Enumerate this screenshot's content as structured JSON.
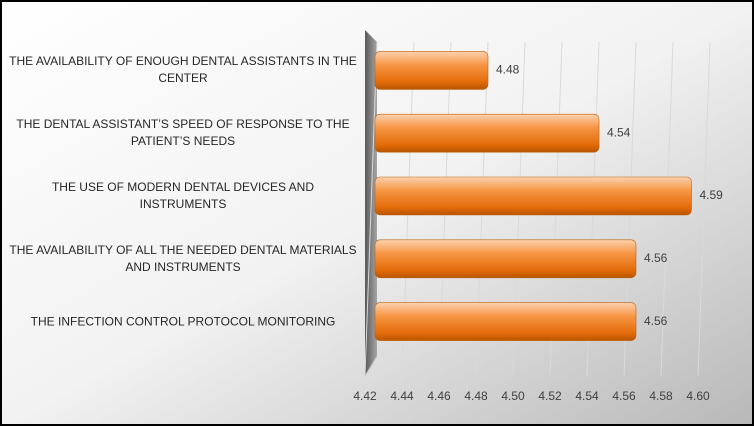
{
  "chart_data": {
    "type": "bar",
    "orientation": "horizontal",
    "categories": [
      "THE AVAILABILITY OF ENOUGH DENTAL ASSISTANTS IN THE CENTER",
      "THE DENTAL ASSISTANT’S SPEED OF RESPONSE TO THE PATIENT’S NEEDS",
      "THE USE OF MODERN DENTAL DEVICES AND INSTRUMENTS",
      "THE AVAILABILITY OF ALL THE NEEDED DENTAL MATERIALS AND INSTRUMENTS",
      "THE INFECTION CONTROL PROTOCOL MONITORING"
    ],
    "values": [
      4.48,
      4.54,
      4.59,
      4.56,
      4.56
    ],
    "color": "#f79646",
    "xlim": [
      4.42,
      4.6
    ],
    "xticks": [
      4.42,
      4.44,
      4.46,
      4.48,
      {
        "value": 4.5,
        "label": "4.50"
      },
      4.52,
      4.54,
      4.56,
      4.58,
      {
        "value": 4.6,
        "label": "4.60"
      }
    ],
    "grid": true
  }
}
